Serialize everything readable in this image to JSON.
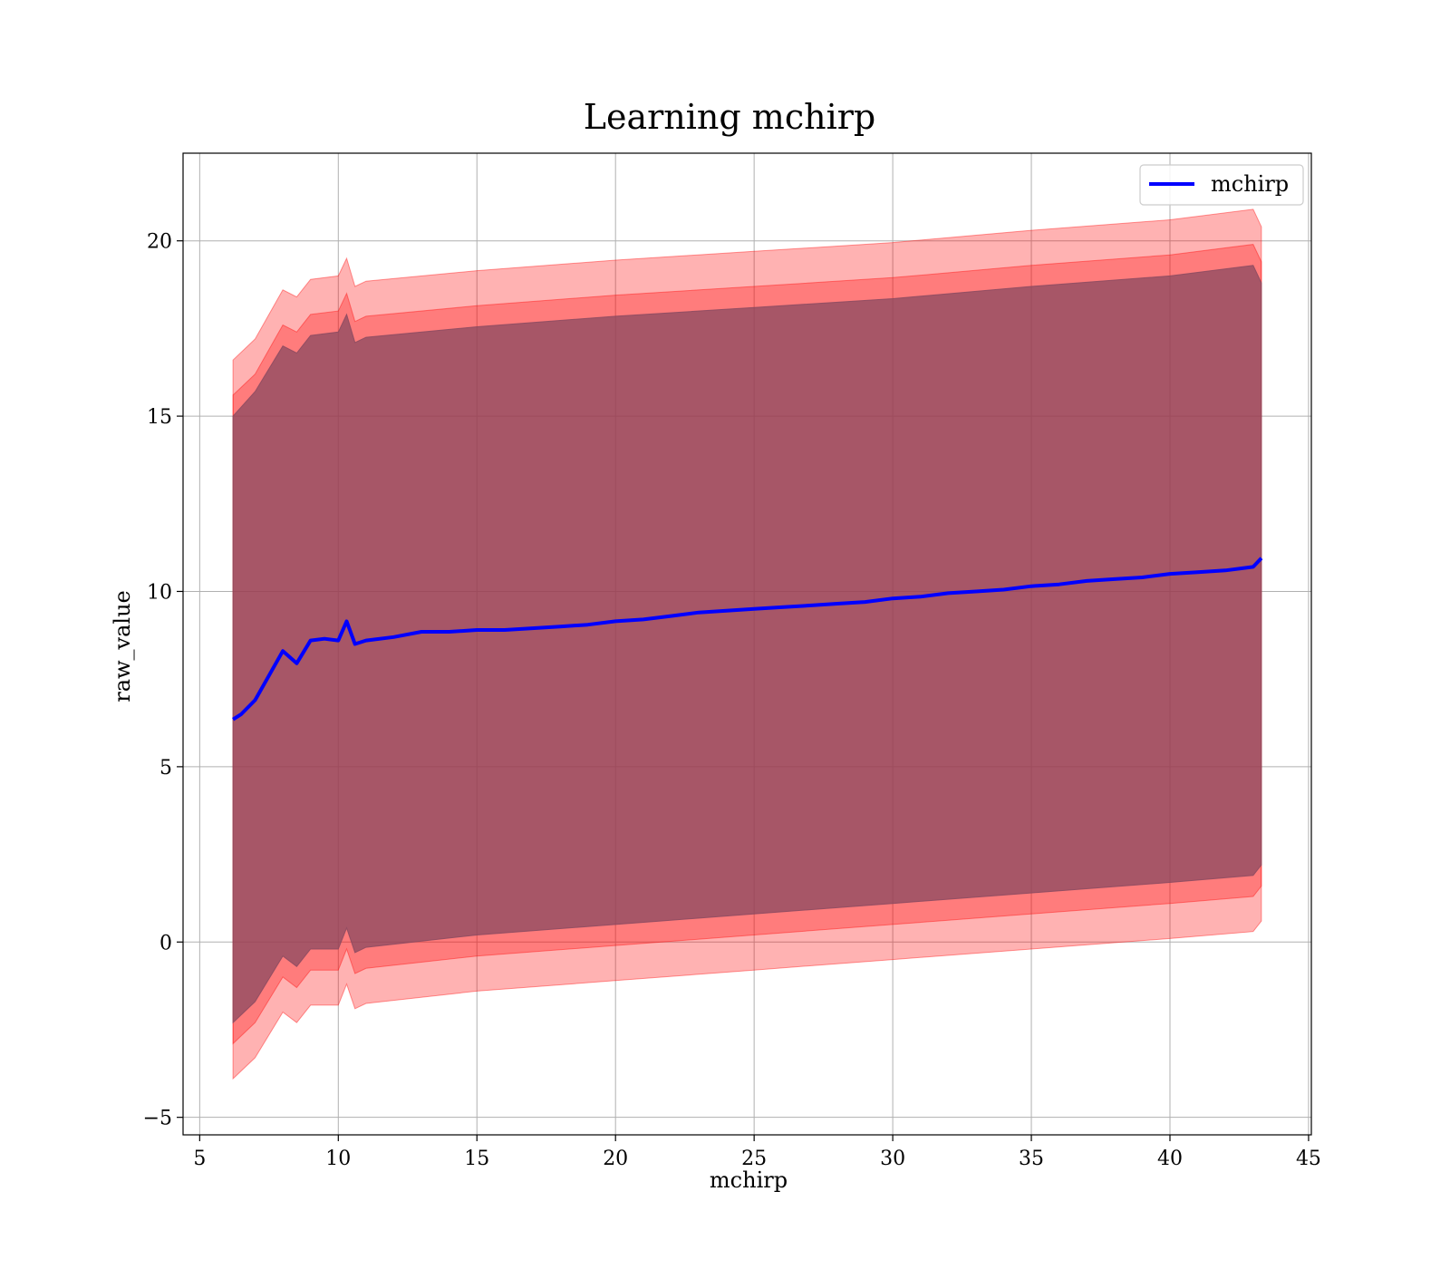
{
  "chart_data": {
    "type": "line",
    "title": "Learning mchirp",
    "xlabel": "mchirp",
    "ylabel": "raw_value",
    "xlim": [
      4.4,
      45.1
    ],
    "ylim": [
      -5.5,
      22.5
    ],
    "xticks": [
      5,
      10,
      15,
      20,
      25,
      30,
      35,
      40,
      45
    ],
    "yticks": [
      -5,
      0,
      5,
      10,
      15,
      20
    ],
    "ytick_labels": [
      "−5",
      "0",
      "5",
      "10",
      "15",
      "20"
    ],
    "grid": true,
    "legend_position": "top-right",
    "series": [
      {
        "name": "mchirp",
        "color": "#0000ff",
        "x": [
          6.2,
          6.5,
          7.0,
          7.5,
          8.0,
          8.5,
          9.0,
          9.5,
          10.0,
          10.3,
          10.6,
          11,
          12,
          13,
          14,
          15,
          16,
          17,
          18,
          19,
          20,
          21,
          22,
          23,
          24,
          25,
          26,
          27,
          28,
          29,
          30,
          31,
          32,
          33,
          34,
          35,
          36,
          37,
          38,
          39,
          40,
          41,
          42,
          43,
          43.3
        ],
        "y": [
          6.35,
          6.5,
          6.9,
          7.6,
          8.3,
          7.95,
          8.6,
          8.65,
          8.6,
          9.15,
          8.5,
          8.6,
          8.7,
          8.85,
          8.85,
          8.9,
          8.9,
          8.95,
          9.0,
          9.05,
          9.15,
          9.2,
          9.3,
          9.4,
          9.45,
          9.5,
          9.55,
          9.6,
          9.65,
          9.7,
          9.8,
          9.85,
          9.95,
          10.0,
          10.05,
          10.15,
          10.2,
          10.3,
          10.35,
          10.4,
          10.5,
          10.55,
          10.6,
          10.7,
          10.95
        ]
      }
    ],
    "bands": [
      {
        "color": "#ff0000",
        "opacity": 0.3,
        "x": [
          6.2,
          7.0,
          8.0,
          8.5,
          9.0,
          10.0,
          10.3,
          10.6,
          11,
          15,
          20,
          25,
          30,
          35,
          40,
          43,
          43.3
        ],
        "upper": [
          16.6,
          17.2,
          18.6,
          18.4,
          18.9,
          19.0,
          19.5,
          18.7,
          18.85,
          19.15,
          19.45,
          19.7,
          19.95,
          20.3,
          20.6,
          20.9,
          20.4
        ],
        "lower": [
          -3.9,
          -3.3,
          -2.0,
          -2.3,
          -1.8,
          -1.8,
          -1.2,
          -1.9,
          -1.75,
          -1.4,
          -1.1,
          -0.8,
          -0.5,
          -0.2,
          0.1,
          0.3,
          0.6
        ]
      },
      {
        "color": "#ff0000",
        "opacity": 0.3,
        "x": [
          6.2,
          7.0,
          8.0,
          8.5,
          9.0,
          10.0,
          10.3,
          10.6,
          11,
          15,
          20,
          25,
          30,
          35,
          40,
          43,
          43.3
        ],
        "upper": [
          15.6,
          16.2,
          17.6,
          17.4,
          17.9,
          18.0,
          18.5,
          17.7,
          17.85,
          18.15,
          18.45,
          18.7,
          18.95,
          19.3,
          19.6,
          19.9,
          19.4
        ],
        "lower": [
          -2.9,
          -2.3,
          -1.0,
          -1.3,
          -0.8,
          -0.8,
          -0.2,
          -0.9,
          -0.75,
          -0.4,
          -0.1,
          0.2,
          0.5,
          0.8,
          1.1,
          1.3,
          1.6
        ]
      },
      {
        "color": "#8a4a60",
        "opacity": 0.75,
        "x": [
          6.2,
          7.0,
          8.0,
          8.5,
          9.0,
          10.0,
          10.3,
          10.6,
          11,
          15,
          20,
          25,
          30,
          35,
          40,
          43,
          43.3
        ],
        "upper": [
          15.0,
          15.7,
          17.0,
          16.8,
          17.3,
          17.4,
          17.9,
          17.1,
          17.25,
          17.55,
          17.85,
          18.1,
          18.35,
          18.7,
          19.0,
          19.3,
          18.8
        ],
        "lower": [
          -2.3,
          -1.7,
          -0.4,
          -0.7,
          -0.2,
          -0.2,
          0.4,
          -0.3,
          -0.15,
          0.2,
          0.5,
          0.8,
          1.1,
          1.4,
          1.7,
          1.9,
          2.2
        ]
      }
    ]
  }
}
